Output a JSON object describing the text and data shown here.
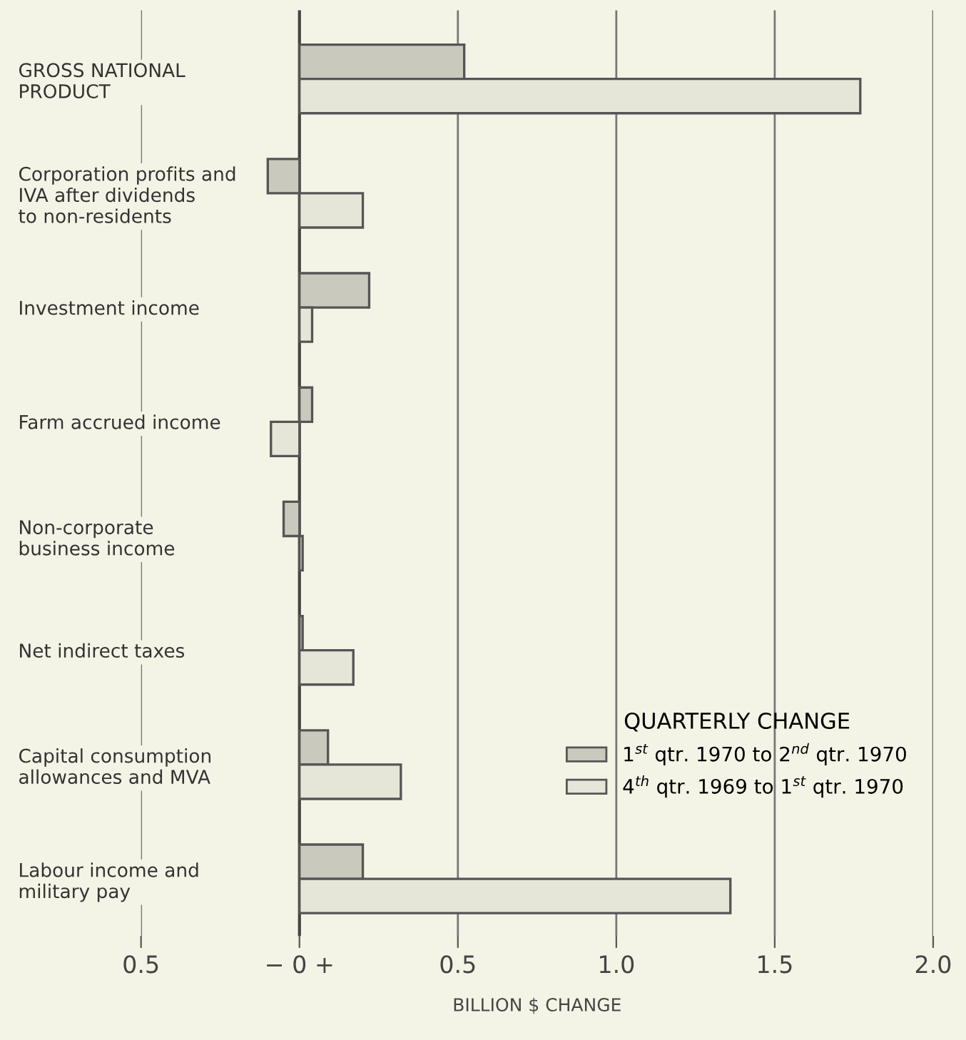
{
  "chart_data": {
    "type": "bar",
    "orientation": "horizontal",
    "categories": [
      "GROSS NATIONAL\nPRODUCT",
      "Corporation profits and\nIVA after dividends\nto non-residents",
      "Investment income",
      "Farm accrued income",
      "Non-corporate\nbusiness income",
      "Net indirect taxes",
      "Capital consumption\nallowances and MVA",
      "Labour income and\nmilitary pay"
    ],
    "series": [
      {
        "name": "1$^{st}$ qtr. 1970 to 2$^{nd}$ qtr. 1970",
        "color": "#c9c9bd",
        "values": [
          0.52,
          -0.1,
          0.22,
          0.04,
          -0.05,
          0.01,
          0.09,
          0.2
        ]
      },
      {
        "name": "4$^{th}$ qtr. 1969 to 1$^{st}$ qtr. 1970",
        "color": "#e6e6d8",
        "values": [
          1.77,
          0.2,
          0.04,
          -0.09,
          0.01,
          0.17,
          0.32,
          1.36
        ]
      }
    ],
    "legend_title": "QUARTERLY CHANGE",
    "legend": "bottom right",
    "xlabel": "BILLION $ CHANGE",
    "xlim": [
      -0.5,
      2.0
    ],
    "xticks": [
      {
        "value": -0.5,
        "label": "0.5"
      },
      {
        "value": 0,
        "label": "− 0 +"
      },
      0.5,
      {
        "value": 1.0,
        "label": "1.0"
      },
      1.5,
      {
        "value": 2.0,
        "label": "2.0"
      }
    ],
    "grid": "x"
  }
}
